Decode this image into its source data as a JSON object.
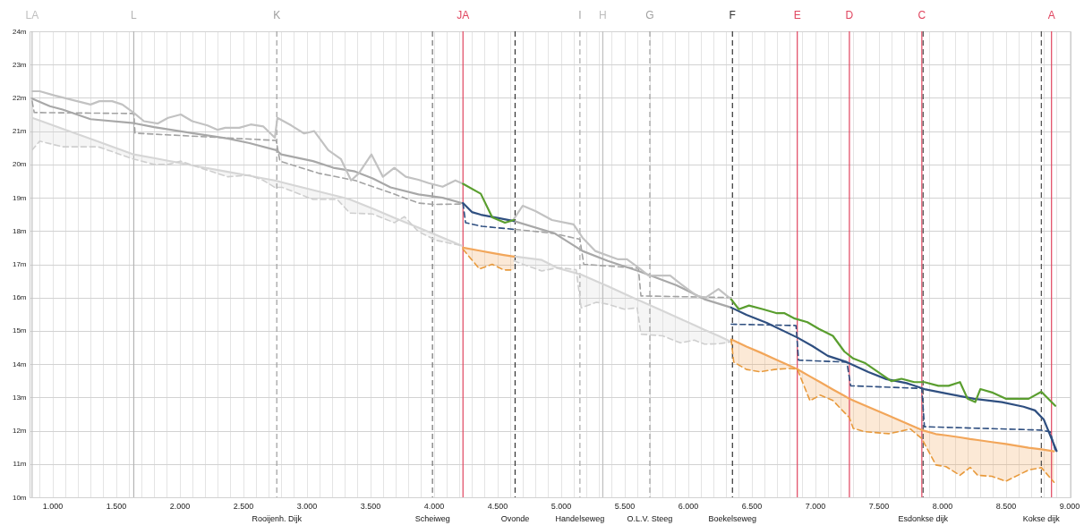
{
  "chart_data": {
    "type": "line",
    "xlim": [
      820,
      9010
    ],
    "ylim": [
      10,
      24
    ],
    "xticks": [
      {
        "value": 900,
        "label": null
      },
      {
        "value": 1000,
        "label": "1.000"
      },
      {
        "value": 1100,
        "label": null
      },
      {
        "value": 1200,
        "label": null
      },
      {
        "value": 1300,
        "label": null
      },
      {
        "value": 1400,
        "label": null
      },
      {
        "value": 1500,
        "label": "1.500"
      },
      {
        "value": 1600,
        "label": null
      },
      {
        "value": 1700,
        "label": null
      },
      {
        "value": 1800,
        "label": null
      },
      {
        "value": 1900,
        "label": null
      },
      {
        "value": 2000,
        "label": "2.000"
      },
      {
        "value": 2100,
        "label": null
      },
      {
        "value": 2200,
        "label": null
      },
      {
        "value": 2300,
        "label": null
      },
      {
        "value": 2400,
        "label": null
      },
      {
        "value": 2500,
        "label": "2.500"
      },
      {
        "value": 2600,
        "label": null
      },
      {
        "value": 2700,
        "label": null
      },
      {
        "value": 2800,
        "label": null
      },
      {
        "value": 2900,
        "label": null
      },
      {
        "value": 3000,
        "label": "3.000"
      },
      {
        "value": 3100,
        "label": null
      },
      {
        "value": 3200,
        "label": null
      },
      {
        "value": 3300,
        "label": null
      },
      {
        "value": 3400,
        "label": null
      },
      {
        "value": 3500,
        "label": "3.500"
      },
      {
        "value": 3600,
        "label": null
      },
      {
        "value": 3700,
        "label": null
      },
      {
        "value": 3800,
        "label": null
      },
      {
        "value": 3900,
        "label": null
      },
      {
        "value": 4000,
        "label": "4.000"
      },
      {
        "value": 4100,
        "label": null
      },
      {
        "value": 4200,
        "label": null
      },
      {
        "value": 4300,
        "label": null
      },
      {
        "value": 4400,
        "label": null
      },
      {
        "value": 4500,
        "label": "4.500"
      },
      {
        "value": 4600,
        "label": null
      },
      {
        "value": 4700,
        "label": null
      },
      {
        "value": 4800,
        "label": null
      },
      {
        "value": 4900,
        "label": null
      },
      {
        "value": 5000,
        "label": "5.000"
      },
      {
        "value": 5100,
        "label": null
      },
      {
        "value": 5200,
        "label": null
      },
      {
        "value": 5300,
        "label": null
      },
      {
        "value": 5400,
        "label": null
      },
      {
        "value": 5500,
        "label": "5.500"
      },
      {
        "value": 5600,
        "label": null
      },
      {
        "value": 5700,
        "label": null
      },
      {
        "value": 5800,
        "label": null
      },
      {
        "value": 5900,
        "label": null
      },
      {
        "value": 6000,
        "label": "6.000"
      },
      {
        "value": 6100,
        "label": null
      },
      {
        "value": 6200,
        "label": null
      },
      {
        "value": 6300,
        "label": null
      },
      {
        "value": 6400,
        "label": null
      },
      {
        "value": 6500,
        "label": "6.500"
      },
      {
        "value": 6600,
        "label": null
      },
      {
        "value": 6700,
        "label": null
      },
      {
        "value": 6800,
        "label": null
      },
      {
        "value": 6900,
        "label": null
      },
      {
        "value": 7000,
        "label": "7.000"
      },
      {
        "value": 7100,
        "label": null
      },
      {
        "value": 7200,
        "label": null
      },
      {
        "value": 7300,
        "label": null
      },
      {
        "value": 7400,
        "label": null
      },
      {
        "value": 7500,
        "label": "7.500"
      },
      {
        "value": 7600,
        "label": null
      },
      {
        "value": 7700,
        "label": null
      },
      {
        "value": 7800,
        "label": null
      },
      {
        "value": 7900,
        "label": null
      },
      {
        "value": 8000,
        "label": "8.000"
      },
      {
        "value": 8100,
        "label": null
      },
      {
        "value": 8200,
        "label": null
      },
      {
        "value": 8300,
        "label": null
      },
      {
        "value": 8400,
        "label": null
      },
      {
        "value": 8500,
        "label": "8.500"
      },
      {
        "value": 8600,
        "label": null
      },
      {
        "value": 8700,
        "label": null
      },
      {
        "value": 8800,
        "label": null
      },
      {
        "value": 8900,
        "label": null
      },
      {
        "value": 9000,
        "label": "9.000"
      }
    ],
    "yticks": [
      {
        "value": 10,
        "label": "10m"
      },
      {
        "value": 11,
        "label": "11m"
      },
      {
        "value": 12,
        "label": "12m"
      },
      {
        "value": 13,
        "label": "13m"
      },
      {
        "value": 14,
        "label": "14m"
      },
      {
        "value": 15,
        "label": "15m"
      },
      {
        "value": 16,
        "label": "16m"
      },
      {
        "value": 17,
        "label": "17m"
      },
      {
        "value": 18,
        "label": "18m"
      },
      {
        "value": 19,
        "label": "19m"
      },
      {
        "value": 20,
        "label": "20m"
      },
      {
        "value": 21,
        "label": "21m"
      },
      {
        "value": 22,
        "label": "22m"
      },
      {
        "value": 23,
        "label": "23m"
      },
      {
        "value": 24,
        "label": "24m"
      }
    ],
    "grid": true,
    "series": [
      {
        "color": "#d6d6d6",
        "x": [
          840,
          900,
          1080,
          1360,
          1640,
          1800,
          1910,
          2010,
          2160,
          2380,
          2550,
          2660,
          2750,
          2810,
          3050,
          3240,
          3340,
          3520,
          3690,
          3770,
          3880,
          4020,
          4220,
          4430,
          4630,
          4850,
          4980,
          5120,
          5160,
          5280,
          5370,
          5500,
          5600,
          5630,
          5800,
          5940,
          6050,
          6130,
          6240,
          6340
        ],
        "values": [
          21.4,
          21.32,
          21.07,
          20.69,
          20.3,
          20.19,
          20.11,
          20.04,
          19.93,
          19.78,
          19.66,
          19.58,
          19.52,
          19.46,
          19.23,
          19.05,
          18.95,
          18.67,
          18.4,
          18.27,
          18.1,
          17.88,
          17.56,
          null,
          17.24,
          17.13,
          16.88,
          16.73,
          16.69,
          16.49,
          16.34,
          16.11,
          15.94,
          15.89,
          15.6,
          15.36,
          15.17,
          15.03,
          14.85,
          14.67
        ],
        "upper": [
          21.4,
          21.32,
          21.07,
          20.69,
          20.3,
          20.19,
          20.11,
          20.04,
          19.93,
          19.78,
          19.66,
          19.58,
          19.52,
          19.46,
          19.23,
          19.05,
          18.95,
          18.67,
          18.4,
          18.27,
          18.1,
          17.88,
          17.56,
          null,
          17.24,
          17.13,
          16.88,
          16.73,
          16.69,
          16.49,
          16.34,
          16.11,
          15.94,
          15.89,
          15.6,
          15.36,
          15.17,
          15.03,
          14.85,
          14.67
        ],
        "lower": [
          20.43,
          20.7,
          20.53,
          20.53,
          20.16,
          20.0,
          20.0,
          20.1,
          19.9,
          19.63,
          19.68,
          19.52,
          19.31,
          19.31,
          18.95,
          18.95,
          18.54,
          18.51,
          18.25,
          18.43,
          17.98,
          17.72,
          17.56,
          null,
          17.1,
          16.8,
          16.9,
          16.84,
          15.69,
          15.86,
          15.8,
          15.65,
          15.69,
          14.9,
          14.85,
          14.64,
          14.72,
          14.6,
          14.61,
          14.67
        ]
      },
      {
        "color": "#cfcfcf",
        "line_style": "dashed",
        "x": [
          840,
          900,
          1080,
          1360,
          1640,
          1800,
          1910,
          2010,
          2160,
          2380,
          2550,
          2660,
          2750,
          2810,
          3050,
          3240,
          3340,
          3520,
          3690,
          3770,
          3880,
          4020,
          4220,
          4430,
          4630,
          4850,
          4980,
          5120,
          5160,
          5280,
          5370,
          5500,
          5600,
          5630,
          5800,
          5940,
          6050,
          6130,
          6240,
          6340
        ],
        "values": [
          20.43,
          20.7,
          20.53,
          20.53,
          20.16,
          20.0,
          20.0,
          20.1,
          19.9,
          19.63,
          19.68,
          19.52,
          19.31,
          19.31,
          18.95,
          18.95,
          18.54,
          18.51,
          18.25,
          18.43,
          17.98,
          17.72,
          17.56,
          null,
          17.1,
          16.8,
          16.9,
          16.84,
          15.69,
          15.86,
          15.8,
          15.65,
          15.69,
          14.9,
          14.85,
          14.64,
          14.72,
          14.6,
          14.61,
          14.67
        ]
      },
      {
        "color": "#a3a3a3",
        "line_style": "dashed",
        "x": [
          840,
          857,
          1640,
          1650,
          2760,
          2790,
          3100,
          3380,
          3660,
          3880,
          4000,
          4220,
          4430,
          4640,
          4940,
          5150,
          5180,
          5610,
          5630,
          6340
        ],
        "values": [
          21.9,
          21.56,
          21.53,
          20.94,
          20.72,
          20.1,
          19.73,
          19.52,
          19.15,
          18.84,
          18.8,
          18.81,
          null,
          18.05,
          17.93,
          17.75,
          17.0,
          16.88,
          16.05,
          16.0
        ]
      },
      {
        "color": "#a8a8a8",
        "x": [
          840,
          980,
          1080,
          1300,
          1640,
          1800,
          2100,
          2380,
          2550,
          2760,
          2800,
          3050,
          3210,
          3380,
          3520,
          3660,
          3880,
          4070,
          4220,
          4430,
          4630,
          4950,
          5170,
          5370,
          5610,
          5910,
          6130,
          6340
        ],
        "values": [
          21.98,
          21.75,
          21.65,
          21.36,
          21.24,
          21.12,
          20.94,
          20.78,
          20.64,
          20.43,
          20.3,
          20.1,
          19.9,
          19.79,
          19.58,
          19.31,
          19.1,
          19.0,
          18.84,
          null,
          18.3,
          17.93,
          17.4,
          17.1,
          16.8,
          16.37,
          15.95,
          15.7
        ]
      },
      {
        "color": "#c2c2c2",
        "x": [
          840,
          900,
          1020,
          1300,
          1370,
          1470,
          1550,
          1640,
          1720,
          1830,
          1910,
          2010,
          2100,
          2220,
          2300,
          2360,
          2470,
          2560,
          2660,
          2750,
          2770,
          2880,
          2980,
          3060,
          3170,
          3270,
          3350,
          3410,
          3510,
          3600,
          3690,
          3780,
          3880,
          3960,
          4070,
          4170,
          4230,
          4430,
          4630,
          4700,
          4800,
          4930,
          5100,
          5170,
          5270,
          5450,
          5520,
          5610,
          5690,
          5860,
          5940,
          6070,
          6140,
          6240,
          6340
        ],
        "values": [
          22.2,
          22.2,
          22.07,
          21.8,
          21.9,
          21.9,
          21.8,
          21.55,
          21.3,
          21.23,
          21.4,
          21.5,
          21.3,
          21.17,
          21.04,
          21.1,
          21.1,
          21.2,
          21.14,
          20.8,
          21.4,
          21.17,
          20.93,
          21.0,
          20.43,
          20.16,
          19.52,
          19.73,
          20.3,
          19.63,
          19.9,
          19.63,
          19.54,
          19.44,
          19.33,
          19.52,
          19.42,
          null,
          18.36,
          18.76,
          18.6,
          18.33,
          18.2,
          17.8,
          17.4,
          17.15,
          17.15,
          16.9,
          16.66,
          16.66,
          16.42,
          16.05,
          16.0,
          16.26,
          15.95
        ]
      },
      {
        "color": "#f2a65a",
        "x": [
          4230,
          4360,
          4460,
          4550,
          4630,
          5500,
          6340,
          6360,
          6460,
          6570,
          6680,
          6790,
          6860,
          6960,
          7040,
          7140,
          7230,
          7270,
          7300,
          7390,
          7580,
          7750,
          7840,
          7950,
          8030,
          8140,
          8220,
          8280,
          8390,
          8500,
          8680,
          8780,
          8880
        ],
        "values": [
          17.5,
          17.41,
          17.34,
          17.28,
          17.23,
          null,
          14.74,
          14.71,
          14.53,
          14.35,
          14.16,
          13.97,
          13.85,
          13.63,
          13.46,
          13.24,
          13.05,
          12.96,
          12.91,
          12.76,
          12.45,
          12.17,
          12.02,
          11.9,
          11.86,
          11.8,
          11.75,
          11.72,
          11.66,
          11.6,
          11.49,
          11.44,
          11.38
        ],
        "upper": [
          17.5,
          17.41,
          17.34,
          17.28,
          17.23,
          null,
          14.74,
          14.71,
          14.53,
          14.35,
          14.16,
          13.97,
          13.85,
          13.63,
          13.46,
          13.24,
          13.05,
          12.96,
          12.91,
          12.76,
          12.45,
          12.17,
          12.02,
          11.9,
          11.86,
          11.8,
          11.75,
          11.72,
          11.66,
          11.6,
          11.49,
          11.44,
          11.38
        ],
        "lower": [
          17.45,
          16.86,
          17.0,
          16.83,
          16.83,
          null,
          14.74,
          14.06,
          13.84,
          13.77,
          13.84,
          13.87,
          13.85,
          12.9,
          13.07,
          12.91,
          12.55,
          12.39,
          12.07,
          11.97,
          11.91,
          12.05,
          11.76,
          10.97,
          10.92,
          10.66,
          10.9,
          10.66,
          10.63,
          10.48,
          10.82,
          10.89,
          10.45
        ]
      },
      {
        "color": "#e89a3c",
        "line_style": "dashed",
        "x": [
          4230,
          4360,
          4460,
          4550,
          4630,
          5500,
          6340,
          6360,
          6460,
          6570,
          6680,
          6790,
          6860,
          6960,
          7040,
          7140,
          7230,
          7270,
          7300,
          7390,
          7580,
          7750,
          7840,
          7950,
          8030,
          8140,
          8220,
          8280,
          8390,
          8500,
          8680,
          8780,
          8880
        ],
        "values": [
          17.45,
          16.86,
          17.0,
          16.83,
          16.83,
          null,
          14.74,
          14.06,
          13.84,
          13.77,
          13.84,
          13.87,
          13.85,
          12.9,
          13.07,
          12.91,
          12.55,
          12.39,
          12.07,
          11.97,
          11.91,
          12.05,
          11.76,
          10.97,
          10.92,
          10.66,
          10.9,
          10.66,
          10.63,
          10.48,
          10.82,
          10.89,
          10.45
        ]
      },
      {
        "color": "#2f4f80",
        "line_style": "dashed",
        "x": [
          4230,
          4250,
          4380,
          4630,
          5500,
          6340,
          6850,
          6870,
          7250,
          7280,
          7840,
          7860,
          8770,
          8850,
          8890
        ],
        "values": [
          18.84,
          18.25,
          18.14,
          18.05,
          null,
          15.2,
          15.16,
          14.12,
          14.06,
          13.35,
          13.27,
          12.12,
          12.02,
          11.97,
          11.4
        ]
      },
      {
        "color": "#2f4f80",
        "x": [
          4230,
          4300,
          4370,
          4520,
          4630,
          5500,
          6340,
          6460,
          6620,
          6860,
          6980,
          7100,
          7250,
          7420,
          7560,
          7720,
          7860,
          8030,
          8250,
          8470,
          8640,
          8730,
          8800,
          8900
        ],
        "values": [
          18.84,
          18.57,
          18.49,
          18.38,
          18.3,
          null,
          15.7,
          15.48,
          15.24,
          14.8,
          14.54,
          14.25,
          14.06,
          13.76,
          13.55,
          13.43,
          13.25,
          13.12,
          12.96,
          12.86,
          12.72,
          12.61,
          12.33,
          11.39
        ]
      },
      {
        "color": "#5a9e2f",
        "x": [
          4230,
          4370,
          4460,
          4560,
          4630,
          5500,
          6340,
          6400,
          6480,
          6590,
          6700,
          6760,
          6840,
          6940,
          7030,
          7140,
          7230,
          7300,
          7390,
          7600,
          7680,
          7780,
          7860,
          7970,
          8050,
          8140,
          8200,
          8260,
          8300,
          8400,
          8500,
          8680,
          8780,
          8890
        ],
        "values": [
          19.42,
          19.12,
          18.41,
          18.25,
          18.33,
          null,
          15.95,
          15.65,
          15.76,
          15.65,
          15.53,
          15.53,
          15.37,
          15.26,
          15.06,
          14.85,
          14.38,
          14.17,
          14.04,
          13.49,
          13.56,
          13.46,
          13.46,
          13.35,
          13.35,
          13.46,
          12.96,
          12.86,
          13.25,
          13.14,
          12.96,
          12.96,
          13.17,
          12.75
        ]
      }
    ],
    "ref_lines": [
      {
        "axis": "x",
        "value": 840,
        "label": "LA",
        "color": "#c0c0c0"
      },
      {
        "axis": "x",
        "value": 1640,
        "label": "L",
        "color": "#b4b4b4"
      },
      {
        "axis": "x",
        "value": 2765,
        "label": "K",
        "color": "#9e9e9e",
        "line_style": "dashed"
      },
      {
        "axis": "x",
        "value": 3990,
        "color": "#707070",
        "line_style": "dashed"
      },
      {
        "axis": "x",
        "value": 4230,
        "label": "JA",
        "color": "#e0455f"
      },
      {
        "axis": "x",
        "value": 4640,
        "color": "#333333",
        "line_style": "dashed"
      },
      {
        "axis": "x",
        "value": 5150,
        "label": "I",
        "color": "#a8a8a8",
        "line_style": "dashed"
      },
      {
        "axis": "x",
        "value": 5330,
        "label": "H",
        "color": "#bdbdbd"
      },
      {
        "axis": "x",
        "value": 5700,
        "label": "G",
        "color": "#a0a0a0",
        "line_style": "dashed"
      },
      {
        "axis": "x",
        "value": 6350,
        "label": "F",
        "color": "#333333",
        "line_style": "dashed"
      },
      {
        "axis": "x",
        "value": 6860,
        "label": "E",
        "color": "#e0455f"
      },
      {
        "axis": "x",
        "value": 7270,
        "label": "D",
        "color": "#e0455f"
      },
      {
        "axis": "x",
        "value": 7840,
        "label": "C",
        "color": "#e0455f"
      },
      {
        "axis": "x",
        "value": 7850,
        "color": "#4a4a4a",
        "line_style": "dashed"
      },
      {
        "axis": "x",
        "value": 8780,
        "color": "#4a4a4a",
        "line_style": "dashed"
      },
      {
        "axis": "x",
        "value": 8860,
        "label": "A",
        "color": "#e0455f"
      }
    ],
    "annotations": [
      {
        "text": "Rooijenh. Dijk",
        "x": 2765,
        "y": 10
      },
      {
        "text": "Scheiweg",
        "x": 3990,
        "y": 10
      },
      {
        "text": "Ovonde",
        "x": 4640,
        "y": 10
      },
      {
        "text": "Handelseweg",
        "x": 5150,
        "y": 10
      },
      {
        "text": "O.L.V. Steeg",
        "x": 5700,
        "y": 10
      },
      {
        "text": "Boekelseweg",
        "x": 6350,
        "y": 10
      },
      {
        "text": "Esdonkse dijk",
        "x": 7850,
        "y": 10
      },
      {
        "text": "Kokse dijk",
        "x": 8780,
        "y": 10
      }
    ]
  }
}
